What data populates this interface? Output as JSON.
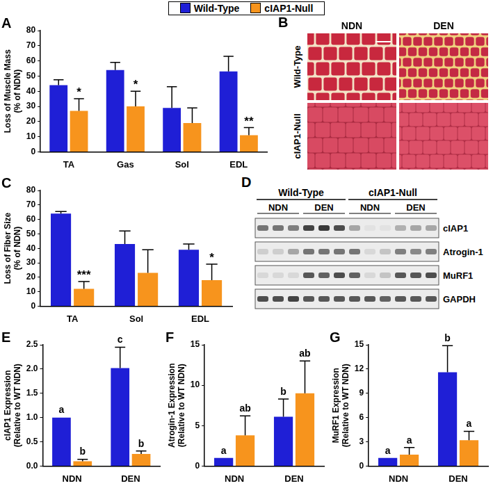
{
  "chart_data": [
    {
      "panel_label": "A",
      "type": "bar",
      "legend": "top",
      "ylabel": [
        "Loss of Muscle Mass",
        "(% of NDN)"
      ],
      "categories": [
        "TA",
        "Gas",
        "Sol",
        "EDL"
      ],
      "series": [
        {
          "name": "Wild-Type",
          "color": "#1f1fd6",
          "values": [
            44,
            54,
            29,
            53
          ],
          "errors": [
            3.5,
            5,
            14,
            10
          ]
        },
        {
          "name": "cIAP1-Null",
          "color": "#f7941d",
          "values": [
            27,
            30,
            19,
            11
          ],
          "errors": [
            8,
            10,
            10,
            5
          ],
          "annotations": [
            "*",
            "*",
            null,
            "**"
          ]
        }
      ],
      "ylim": [
        0,
        80
      ],
      "yticks": [
        0,
        10,
        20,
        30,
        40,
        50,
        60,
        70,
        80
      ],
      "grid": false
    },
    {
      "panel_label": "C",
      "type": "bar",
      "ylabel": [
        "Loss of Fiber Size",
        "(% of NDN)"
      ],
      "categories": [
        "TA",
        "Sol",
        "EDL"
      ],
      "series": [
        {
          "name": "Wild-Type",
          "color": "#1f1fd6",
          "values": [
            64,
            43,
            39
          ],
          "errors": [
            1.5,
            9,
            4
          ]
        },
        {
          "name": "cIAP1-Null",
          "color": "#f7941d",
          "values": [
            12,
            23,
            18
          ],
          "errors": [
            5,
            16,
            11
          ],
          "annotations": [
            "***",
            null,
            "*"
          ]
        }
      ],
      "ylim": [
        0,
        80
      ],
      "yticks": [
        0,
        10,
        20,
        30,
        40,
        50,
        60,
        70,
        80
      ],
      "grid": false
    },
    {
      "panel_label": "E",
      "type": "bar",
      "ylabel": [
        "cIAP1 Expression",
        "(Relative to WT NDN)"
      ],
      "categories": [
        "NDN",
        "DEN"
      ],
      "series": [
        {
          "name": "Wild-Type",
          "color": "#1f1fd6",
          "values": [
            1.0,
            2.02
          ],
          "errors": [
            0,
            0.43
          ],
          "annotations": [
            "a",
            "c"
          ]
        },
        {
          "name": "cIAP1-Null",
          "color": "#f7941d",
          "values": [
            0.1,
            0.25
          ],
          "errors": [
            0.04,
            0.06
          ],
          "annotations": [
            "b",
            "b"
          ]
        }
      ],
      "ylim": [
        0,
        2.5
      ],
      "yticks": [
        {
          "value": 0,
          "label": "0.0"
        },
        {
          "value": 0.5,
          "label": "0.5"
        },
        {
          "value": 1,
          "label": "1.0"
        },
        {
          "value": 1.5,
          "label": "1.5"
        },
        {
          "value": 2,
          "label": "2.0"
        },
        {
          "value": 2.5,
          "label": "2.5"
        }
      ],
      "grid": false
    },
    {
      "panel_label": "F",
      "type": "bar",
      "ylabel": [
        "Atrogin-1 Expression",
        "(Relative to WT NDN)"
      ],
      "categories": [
        "NDN",
        "DEN"
      ],
      "series": [
        {
          "name": "Wild-Type",
          "color": "#1f1fd6",
          "values": [
            1,
            6.1
          ],
          "errors": [
            0,
            2.2
          ],
          "annotations": [
            "a",
            "b"
          ]
        },
        {
          "name": "cIAP1-Null",
          "color": "#f7941d",
          "values": [
            3.8,
            9
          ],
          "errors": [
            2.4,
            4
          ],
          "annotations": [
            "ab",
            "ab"
          ]
        }
      ],
      "ylim": [
        0,
        15
      ],
      "yticks": [
        0,
        5,
        10,
        15
      ],
      "grid": false
    },
    {
      "panel_label": "G",
      "type": "bar",
      "ylabel": [
        "MuRF1 Expression",
        "(Relative to WT NDN)"
      ],
      "categories": [
        "NDN",
        "DEN"
      ],
      "series": [
        {
          "name": "Wild-Type",
          "color": "#1f1fd6",
          "values": [
            1,
            11.6
          ],
          "errors": [
            0,
            3.3
          ],
          "annotations": [
            "a",
            "b"
          ]
        },
        {
          "name": "cIAP1-Null",
          "color": "#f7941d",
          "values": [
            1.4,
            3.2
          ],
          "errors": [
            0.9,
            1.1
          ],
          "annotations": [
            "a",
            "a"
          ]
        }
      ],
      "ylim": [
        0,
        15
      ],
      "yticks": [
        0,
        3,
        6,
        9,
        12,
        15
      ],
      "grid": false
    }
  ],
  "histology": {
    "panel_label": "B",
    "columns": [
      "NDN",
      "DEN"
    ],
    "rows": [
      "Wild-Type",
      "cIAP1-Null"
    ]
  },
  "western_blot": {
    "panel_label": "D",
    "groups": [
      {
        "label": "Wild-Type",
        "conditions": [
          "NDN",
          "DEN"
        ]
      },
      {
        "label": "cIAP1-Null",
        "conditions": [
          "NDN",
          "DEN"
        ]
      }
    ],
    "lanes_per_condition": 3,
    "rows": [
      {
        "label": "cIAP1",
        "intensity": [
          0.6,
          0.6,
          0.55,
          0.85,
          0.9,
          0.8,
          0.35,
          0.05,
          0.05,
          0.3,
          0.35,
          0.35
        ]
      },
      {
        "label": "Atrogin-1",
        "intensity": [
          0.15,
          0.15,
          0.35,
          0.6,
          0.6,
          0.6,
          0.6,
          0.1,
          0.2,
          0.55,
          0.5,
          0.55
        ]
      },
      {
        "label": "MuRF1",
        "intensity": [
          0.1,
          0.1,
          0.1,
          0.75,
          0.7,
          0.8,
          0.7,
          0.1,
          0.2,
          0.75,
          0.75,
          0.8
        ]
      },
      {
        "label": "GAPDH",
        "intensity": [
          0.8,
          0.8,
          0.85,
          0.75,
          0.75,
          0.75,
          0.75,
          0.75,
          0.7,
          0.75,
          0.75,
          0.75
        ]
      }
    ]
  }
}
